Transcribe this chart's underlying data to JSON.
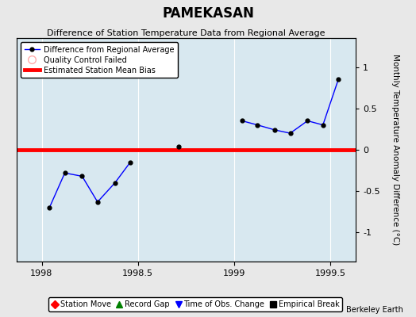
{
  "title": "PAMEKASAN",
  "subtitle": "Difference of Station Temperature Data from Regional Average",
  "ylabel_right": "Monthly Temperature Anomaly Difference (°C)",
  "xlim": [
    1997.87,
    1999.63
  ],
  "ylim": [
    -1.35,
    1.35
  ],
  "yticks": [
    -1,
    -0.5,
    0,
    0.5,
    1
  ],
  "xticks": [
    1998,
    1998.5,
    1999,
    1999.5
  ],
  "xtick_labels": [
    "1998",
    "1998.5",
    "1999",
    "1999.5"
  ],
  "bias_line_y": 0.0,
  "segment1_x": [
    1998.04,
    1998.12,
    1998.21,
    1998.29,
    1998.38,
    1998.46
  ],
  "segment1_y": [
    -0.7,
    -0.28,
    -0.32,
    -0.63,
    -0.4,
    -0.15
  ],
  "segment2_x": [
    1998.71
  ],
  "segment2_y": [
    0.04
  ],
  "segment3_x": [
    1999.04,
    1999.12,
    1999.21,
    1999.29,
    1999.38,
    1999.46,
    1999.54
  ],
  "segment3_y": [
    0.35,
    0.3,
    0.24,
    0.2,
    0.35,
    0.3,
    0.85
  ],
  "line_color": "blue",
  "marker_color": "black",
  "bias_color": "red",
  "bg_color": "#e8e8e8",
  "plot_bg_color": "#d8e8f0",
  "grid_color": "white",
  "legend1_label": "Difference from Regional Average",
  "legend2_label": "Quality Control Failed",
  "legend3_label": "Estimated Station Mean Bias",
  "bottom_legend": [
    "Station Move",
    "Record Gap",
    "Time of Obs. Change",
    "Empirical Break"
  ],
  "bottom_legend_colors": [
    "red",
    "green",
    "blue",
    "black"
  ],
  "bottom_legend_markers": [
    "D",
    "^",
    "v",
    "s"
  ],
  "watermark": "Berkeley Earth",
  "title_fontsize": 12,
  "subtitle_fontsize": 8,
  "tick_fontsize": 8,
  "ylabel_fontsize": 7.5
}
